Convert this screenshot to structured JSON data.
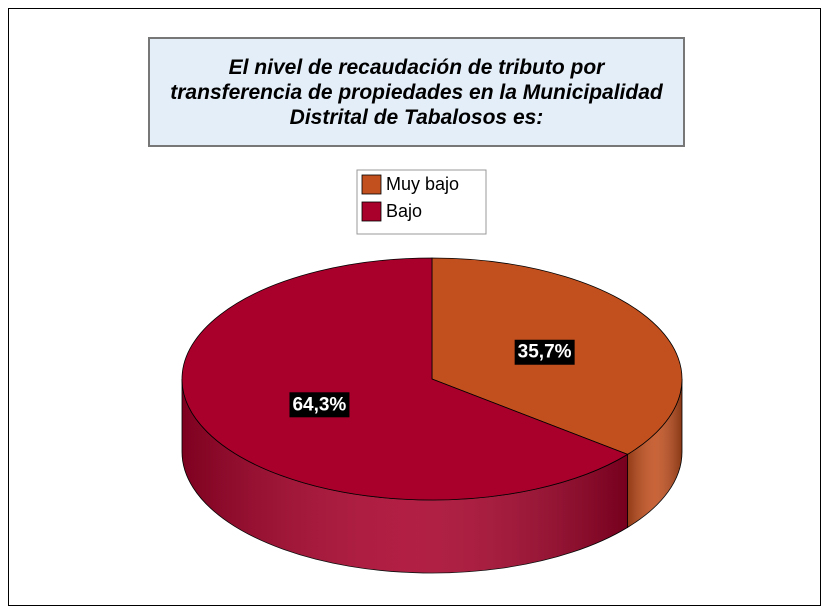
{
  "chart_data": {
    "type": "pie3d",
    "title": "El nivel de recaudación de tributo por transferencia de propiedades en la Municipalidad Distrital de Tabalosos es:",
    "categories": [
      "Muy bajo",
      "Bajo"
    ],
    "values": [
      35.7,
      64.3
    ],
    "value_labels": [
      "35,7%",
      "64,3%"
    ],
    "colors": [
      "#c24f1e",
      "#a8002a"
    ],
    "legend": "top"
  }
}
